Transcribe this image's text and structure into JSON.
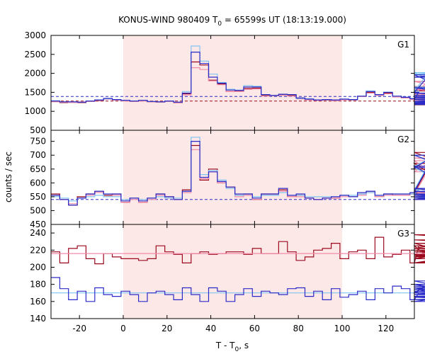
{
  "chart_data": {
    "type": "line",
    "title": {
      "prefix": "KONUS-WIND 980409 T",
      "sub": "0",
      "suffix": " = 65599s UT (18:13:19.000)"
    },
    "xlabel": {
      "prefix": "T - T",
      "sub": "0",
      "suffix": ", s"
    },
    "ylabel": "counts / sec",
    "xlim": [
      -33,
      133
    ],
    "shaded_interval": [
      0,
      100
    ],
    "xticks": [
      -20,
      0,
      20,
      40,
      60,
      80,
      100,
      120
    ],
    "x_step": 4,
    "x_start": -33,
    "colors": {
      "shade": "#fde8e8",
      "dark_red": "#9b0a1e",
      "pink": "#f08caa",
      "light_blue": "#7fc4f0",
      "dark_blue": "#2b2bc8",
      "axis": "#000000"
    },
    "panels": [
      {
        "name": "G1",
        "ylim": [
          500,
          3000
        ],
        "yticks": [
          500,
          1000,
          1500,
          2000,
          2500,
          3000
        ],
        "hlines": [
          {
            "y": 1390,
            "color": "#2b2bc8",
            "dash": true
          },
          {
            "y": 1270,
            "color": "#9b0a1e",
            "dash": true
          }
        ],
        "series": [
          {
            "color": "#9b0a1e",
            "values": [
              1260,
              1230,
              1240,
              1230,
              1260,
              1280,
              1330,
              1300,
              1280,
              1260,
              1280,
              1250,
              1240,
              1260,
              1230,
              1460,
              2300,
              2220,
              1820,
              1720,
              1520,
              1530,
              1600,
              1610,
              1420,
              1410,
              1440,
              1420,
              1330,
              1310,
              1290,
              1300,
              1280,
              1310,
              1300,
              1390,
              1500,
              1420,
              1480,
              1380,
              1350,
              1320,
              1480,
              1640,
              1650,
              1560,
              1460,
              1400,
              1350,
              1310,
              1250,
              1360,
              1300,
              1230,
              1240,
              1240,
              1240,
              1220,
              1200,
              1230,
              1200,
              1210,
              1210,
              1230,
              1240,
              1180,
              1170,
              1220
            ]
          },
          {
            "color": "#f08caa",
            "values": [
              1250,
              1240,
              1230,
              1250,
              1260,
              1290,
              1320,
              1290,
              1270,
              1260,
              1270,
              1250,
              1240,
              1260,
              1220,
              1430,
              2150,
              2100,
              1800,
              1700,
              1520,
              1520,
              1580,
              1590,
              1400,
              1410,
              1420,
              1400,
              1330,
              1300,
              1290,
              1300,
              1280,
              1300,
              1300,
              1390,
              1480,
              1420,
              1460,
              1380,
              1350,
              1310,
              1440,
              1780,
              1790,
              1580,
              1460,
              1400,
              1350,
              1310,
              1250,
              1350,
              1290,
              1230,
              1240,
              1240,
              1230,
              1220,
              1200,
              1230,
              1200,
              1210,
              1210,
              1230,
              1240,
              1190,
              1180,
              1220
            ]
          },
          {
            "color": "#7fc4f0",
            "values": [
              1280,
              1250,
              1250,
              1240,
              1270,
              1300,
              1330,
              1310,
              1290,
              1270,
              1290,
              1260,
              1250,
              1270,
              1240,
              1520,
              2720,
              2320,
              1980,
              1760,
              1580,
              1560,
              1680,
              1660,
              1440,
              1420,
              1450,
              1440,
              1340,
              1330,
              1300,
              1310,
              1300,
              1320,
              1310,
              1400,
              1540,
              1440,
              1500,
              1400,
              1370,
              1340,
              1540,
              1980,
              2020,
              1640,
              1480,
              1420,
              1360,
              1320,
              1260,
              1380,
              1310,
              1240,
              1250,
              1250,
              1250,
              1230,
              1210,
              1240,
              1210,
              1220,
              1220,
              1240,
              1250,
              1190,
              1180,
              1230
            ]
          },
          {
            "color": "#2b2bc8",
            "values": [
              1270,
              1250,
              1250,
              1240,
              1270,
              1300,
              1340,
              1310,
              1290,
              1270,
              1290,
              1260,
              1250,
              1270,
              1240,
              1480,
              2560,
              2260,
              1900,
              1740,
              1560,
              1550,
              1640,
              1640,
              1440,
              1420,
              1450,
              1440,
              1350,
              1320,
              1300,
              1310,
              1300,
              1320,
              1310,
              1400,
              1520,
              1440,
              1500,
              1400,
              1370,
              1330,
              1500,
              1900,
              1960,
              1620,
              1480,
              1420,
              1360,
              1320,
              1260,
              1380,
              1310,
              1240,
              1250,
              1250,
              1250,
              1230,
              1210,
              1240,
              1210,
              1220,
              1220,
              1240,
              1250,
              1190,
              1180,
              1230
            ]
          }
        ]
      },
      {
        "name": "G2",
        "ylim": [
          450,
          790
        ],
        "yticks": [
          450,
          500,
          550,
          600,
          650,
          700,
          750
        ],
        "hlines": [
          {
            "y": 540,
            "color": "#2b2bc8",
            "dash": true
          }
        ],
        "series": [
          {
            "color": "#9b0a1e",
            "values": [
              560,
              540,
              520,
              550,
              560,
              570,
              555,
              560,
              530,
              545,
              530,
              545,
              560,
              550,
              540,
              575,
              735,
              610,
              650,
              600,
              585,
              555,
              560,
              540,
              560,
              560,
              575,
              550,
              555,
              545,
              540,
              545,
              545,
              555,
              550,
              560,
              570,
              550,
              560,
              555,
              555,
              560,
              565,
              650,
              710,
              670,
              580,
              560,
              555,
              550,
              560,
              545,
              540,
              570,
              545,
              540,
              545,
              550,
              545,
              555,
              545,
              550,
              560,
              545,
              550,
              540,
              550,
              545
            ]
          },
          {
            "color": "#f08caa",
            "values": [
              555,
              540,
              525,
              545,
              555,
              565,
              550,
              555,
              530,
              540,
              530,
              540,
              555,
              545,
              540,
              565,
              720,
              615,
              640,
              600,
              580,
              550,
              555,
              540,
              555,
              555,
              570,
              550,
              550,
              545,
              540,
              545,
              545,
              550,
              550,
              555,
              565,
              550,
              555,
              555,
              555,
              560,
              560,
              640,
              690,
              680,
              580,
              560,
              555,
              550,
              555,
              545,
              540,
              565,
              545,
              540,
              545,
              550,
              545,
              550,
              545,
              550,
              555,
              545,
              550,
              540,
              550,
              545
            ]
          },
          {
            "color": "#7fc4f0",
            "values": [
              550,
              545,
              535,
              545,
              550,
              555,
              550,
              550,
              540,
              545,
              540,
              545,
              550,
              545,
              545,
              570,
              765,
              630,
              645,
              610,
              580,
              555,
              560,
              550,
              555,
              555,
              565,
              555,
              555,
              550,
              550,
              550,
              550,
              555,
              555,
              560,
              565,
              555,
              560,
              560,
              560,
              560,
              575,
              660,
              700,
              655,
              580,
              560,
              555,
              550,
              555,
              550,
              545,
              560,
              550,
              545,
              545,
              550,
              545,
              550,
              545,
              550,
              555,
              545,
              550,
              545,
              550,
              545
            ]
          },
          {
            "color": "#2b2bc8",
            "values": [
              555,
              540,
              520,
              545,
              560,
              570,
              560,
              560,
              535,
              545,
              535,
              545,
              560,
              550,
              540,
              570,
              750,
              620,
              640,
              605,
              585,
              560,
              560,
              545,
              560,
              560,
              580,
              555,
              560,
              545,
              540,
              545,
              550,
              555,
              550,
              565,
              570,
              555,
              560,
              560,
              560,
              565,
              570,
              655,
              700,
              660,
              580,
              560,
              555,
              550,
              560,
              545,
              540,
              570,
              545,
              540,
              545,
              555,
              545,
              555,
              545,
              550,
              560,
              545,
              550,
              540,
              550,
              545
            ]
          }
        ]
      },
      {
        "name": "G3",
        "ylim": [
          140,
          250
        ],
        "yticks": [
          140,
          160,
          180,
          200,
          220,
          240
        ],
        "hlines": [],
        "series": [
          {
            "color": "#9b0a1e",
            "values": [
              218,
              205,
              222,
              225,
              210,
              204,
              216,
              212,
              210,
              210,
              208,
              210,
              225,
              218,
              215,
              205,
              216,
              218,
              215,
              216,
              218,
              218,
              215,
              222,
              216,
              216,
              230,
              218,
              208,
              212,
              220,
              222,
              228,
              210,
              218,
              220,
              210,
              235,
              212,
              215,
              220,
              205,
              225,
              212,
              222,
              228,
              215,
              205,
              210,
              222,
              218,
              214,
              210,
              212,
              228,
              225,
              220,
              205,
              232,
              222,
              215,
              212,
              222,
              214,
              238,
              222,
              215,
              210
            ]
          },
          {
            "color": "#f08caa",
            "values": [
              216,
              216,
              216,
              216,
              216,
              216,
              216,
              216,
              216,
              216,
              216,
              216,
              216,
              216,
              216,
              216,
              216,
              216,
              216,
              216,
              216,
              216,
              216,
              216,
              216,
              216,
              216,
              216,
              216,
              216,
              216,
              216,
              216,
              216,
              216,
              216,
              216,
              216,
              216,
              216,
              216,
              216,
              216,
              216,
              216,
              216,
              216,
              216,
              216,
              216,
              216,
              216,
              216,
              216,
              216,
              216,
              216,
              216,
              216,
              216,
              216,
              216,
              216,
              216,
              216,
              216,
              216,
              216
            ]
          },
          {
            "color": "#7fc4f0",
            "values": [
              170,
              170,
              170,
              170,
              170,
              170,
              170,
              170,
              170,
              170,
              170,
              170,
              170,
              170,
              170,
              170,
              170,
              170,
              170,
              170,
              170,
              170,
              170,
              170,
              170,
              170,
              170,
              170,
              170,
              170,
              170,
              170,
              170,
              170,
              170,
              170,
              170,
              170,
              170,
              170,
              170,
              170,
              170,
              170,
              170,
              170,
              170,
              170,
              170,
              170,
              170,
              170,
              170,
              170,
              170,
              170,
              170,
              170,
              170,
              170,
              170,
              170,
              170,
              170,
              170,
              170,
              170,
              170
            ]
          },
          {
            "color": "#2b2bc8",
            "values": [
              188,
              175,
              162,
              172,
              160,
              176,
              168,
              166,
              172,
              168,
              160,
              170,
              172,
              168,
              162,
              176,
              168,
              160,
              176,
              172,
              160,
              168,
              175,
              166,
              172,
              170,
              168,
              175,
              176,
              166,
              172,
              162,
              175,
              165,
              168,
              172,
              162,
              175,
              170,
              178,
              175,
              162,
              170,
              180,
              176,
              170,
              184,
              172,
              168,
              168,
              174,
              170,
              165,
              160,
              176,
              170,
              162,
              170,
              166,
              172,
              178,
              165,
              172,
              162,
              174,
              172,
              165,
              160
            ]
          }
        ]
      }
    ]
  }
}
